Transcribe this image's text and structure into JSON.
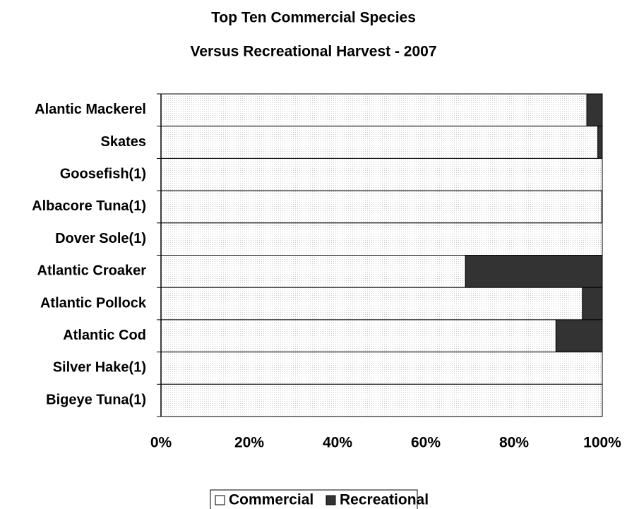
{
  "chart_data": {
    "type": "bar",
    "orientation": "horizontal",
    "stacked": "percent",
    "title": "Top Ten Commercial Species",
    "subtitle": "Versus Recreational Harvest - 2007",
    "categories": [
      "Alantic Mackerel",
      "Skates",
      "Goosefish(1)",
      "Albacore Tuna(1)",
      "Dover Sole(1)",
      "Atlantic Croaker",
      "Atlantic Pollock",
      "Atlantic Cod",
      "Silver Hake(1)",
      "Bigeye Tuna(1)"
    ],
    "series": [
      {
        "name": "Commercial",
        "values": [
          96.5,
          99,
          100,
          99.9,
          100,
          69,
          95.5,
          89.5,
          100,
          100
        ]
      },
      {
        "name": "Recreational",
        "values": [
          3.5,
          1,
          0,
          0.1,
          0,
          31,
          4.5,
          10.5,
          0,
          0
        ]
      }
    ],
    "x_ticks": [
      "0%",
      "20%",
      "40%",
      "60%",
      "80%",
      "100%"
    ],
    "xlim": [
      0,
      100
    ],
    "grid": false,
    "legend_position": "bottom",
    "colors": {
      "commercial": "#ffffff",
      "recreational": "#333333",
      "dots": "#c8c8c8"
    }
  }
}
